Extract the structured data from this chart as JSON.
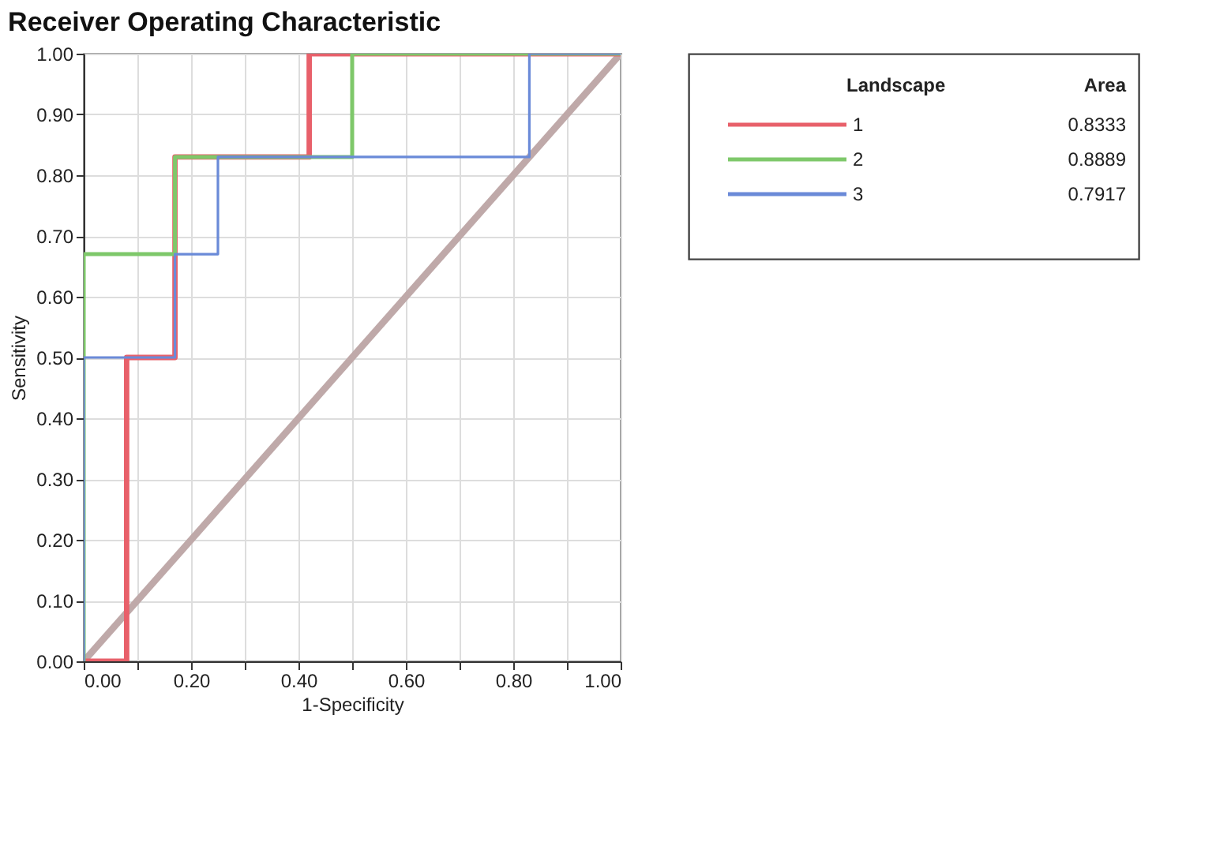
{
  "chart_data": {
    "type": "step",
    "title": "Receiver Operating Characteristic",
    "xlabel": "1-Specificity",
    "ylabel": "Sensitivity",
    "legend_title": "Landscape",
    "legend": "right",
    "grid": true,
    "xlim": [
      0,
      1
    ],
    "ylim": [
      0,
      1
    ],
    "xticks": [
      {
        "value": 0,
        "label": "0.00"
      },
      {
        "value": 0.1,
        "label": null
      },
      {
        "value": 0.2,
        "label": "0.20"
      },
      {
        "value": 0.3,
        "label": null
      },
      {
        "value": 0.4,
        "label": "0.40"
      },
      {
        "value": 0.5,
        "label": null
      },
      {
        "value": 0.6,
        "label": "0.60"
      },
      {
        "value": 0.7,
        "label": null
      },
      {
        "value": 0.8,
        "label": "0.80"
      },
      {
        "value": 0.9,
        "label": null
      },
      {
        "value": 1,
        "label": "1.00"
      }
    ],
    "yticks": [
      {
        "value": 0,
        "label": "0.00"
      },
      {
        "value": 0.1,
        "label": "0.10"
      },
      {
        "value": 0.2,
        "label": "0.20"
      },
      {
        "value": 0.3,
        "label": "0.30"
      },
      {
        "value": 0.4,
        "label": "0.40"
      },
      {
        "value": 0.5,
        "label": "0.50"
      },
      {
        "value": 0.6,
        "label": "0.60"
      },
      {
        "value": 0.7,
        "label": "0.70"
      },
      {
        "value": 0.8,
        "label": "0.80"
      },
      {
        "value": 0.9,
        "label": "0.90"
      },
      {
        "value": 1,
        "label": "1.00"
      }
    ],
    "series": [
      {
        "type": "line",
        "color": "#bfa9a9",
        "x": [
          0,
          1
        ],
        "values": [
          0,
          1
        ]
      },
      {
        "name": "1",
        "color": "#e8606a",
        "x": [
          0,
          0.08,
          0.17,
          0.42,
          1
        ],
        "values": [
          0,
          0.5,
          0.83,
          1,
          1
        ]
      },
      {
        "name": "2",
        "color": "#7ec86a",
        "x": [
          0,
          0,
          0.17,
          0.5,
          1
        ],
        "values": [
          0,
          0.67,
          0.83,
          1,
          1
        ]
      },
      {
        "name": "3",
        "color": "#6a8ad8",
        "x": [
          0,
          0,
          0.17,
          0.25,
          0.83,
          1
        ],
        "values": [
          0,
          0.5,
          0.67,
          0.83,
          1,
          1
        ]
      }
    ],
    "annotations": [
      "Area",
      "0.8333",
      "0.8889",
      "0.7917"
    ]
  }
}
